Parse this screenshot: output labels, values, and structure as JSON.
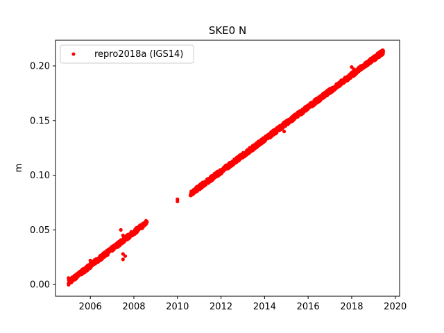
{
  "chart_data": {
    "type": "scatter",
    "title": "SKE0 N",
    "xlabel": "",
    "ylabel": "m",
    "xlim": [
      2004.4,
      2020.2
    ],
    "ylim": [
      -0.0107,
      0.2235
    ],
    "xticks": [
      2006,
      2008,
      2010,
      2012,
      2014,
      2016,
      2018,
      2020
    ],
    "xtick_labels": [
      "2006",
      "2008",
      "2010",
      "2012",
      "2014",
      "2016",
      "2018",
      "2020"
    ],
    "yticks": [
      0.0,
      0.05,
      0.1,
      0.15,
      0.2
    ],
    "ytick_labels": [
      "0.00",
      "0.05",
      "0.10",
      "0.15",
      "0.20"
    ],
    "grid": false,
    "legend": {
      "placement": "top-left"
    },
    "colors": {
      "series": "#ff0000"
    },
    "series": [
      {
        "name": "repro2018a (IGS14)",
        "marker": "circle",
        "segments": [
          {
            "x_start": 2005.0,
            "x_end": 2008.6,
            "y_start": 0.002,
            "y_end": 0.057
          },
          {
            "x_start": 2010.6,
            "x_end": 2019.45,
            "y_start": 0.083,
            "y_end": 0.213
          }
        ],
        "points": [
          [
            2005.0,
            0.001
          ],
          [
            2005.0,
            0.006
          ],
          [
            2005.1,
            0.004
          ],
          [
            2005.2,
            0.005
          ],
          [
            2006.0,
            0.022
          ],
          [
            2007.4,
            0.05
          ],
          [
            2007.5,
            0.045
          ],
          [
            2007.5,
            0.028
          ],
          [
            2007.5,
            0.023
          ],
          [
            2007.6,
            0.026
          ],
          [
            2010.0,
            0.076
          ],
          [
            2010.0,
            0.078
          ],
          [
            2010.6,
            0.082
          ],
          [
            2010.7,
            0.085
          ],
          [
            2010.9,
            0.088
          ],
          [
            2014.9,
            0.14
          ],
          [
            2018.0,
            0.199
          ],
          [
            2018.1,
            0.197
          ],
          [
            2019.4,
            0.214
          ]
        ]
      }
    ]
  }
}
